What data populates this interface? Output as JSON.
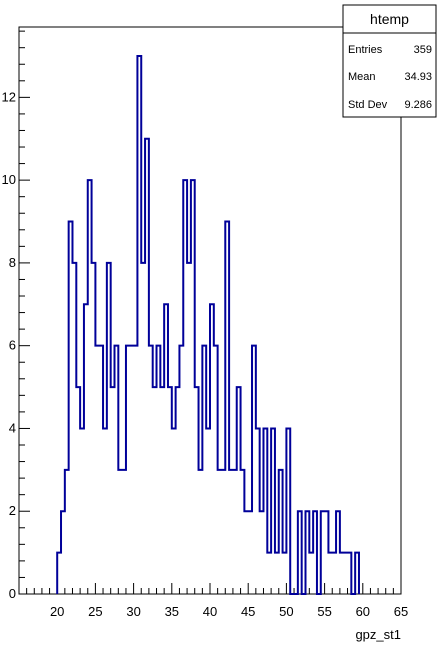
{
  "chart_data": {
    "type": "histogram",
    "title": "",
    "xlabel": "gpz_st1",
    "ylabel": "",
    "xlim": [
      15,
      65
    ],
    "ylim": [
      0,
      13.7
    ],
    "bin_width": 0.5,
    "bin_start": 20,
    "x_ticks": [
      20,
      25,
      30,
      35,
      40,
      45,
      50,
      55,
      60,
      65
    ],
    "y_ticks": [
      0,
      2,
      4,
      6,
      8,
      10,
      12
    ],
    "values": [
      1,
      2,
      3,
      9,
      8,
      5,
      4,
      7,
      10,
      8,
      6,
      6,
      4,
      8,
      5,
      6,
      3,
      3,
      6,
      6,
      6,
      13,
      8,
      11,
      6,
      5,
      6,
      5,
      7,
      5,
      4,
      5,
      6,
      10,
      8,
      10,
      5,
      3,
      6,
      4,
      7,
      6,
      3,
      3,
      9,
      3,
      3,
      5,
      3,
      2,
      2,
      6,
      4,
      2,
      4,
      1,
      4,
      1,
      3,
      1,
      4,
      0,
      0,
      2,
      0,
      2,
      1,
      2,
      0,
      2,
      2,
      1,
      1,
      2,
      1,
      1,
      1,
      0,
      1
    ],
    "line_color": "#000099",
    "stats_box": {
      "title": "htemp",
      "rows": [
        {
          "label": "Entries",
          "value": "359"
        },
        {
          "label": "Mean",
          "value": "34.93"
        },
        {
          "label": "Std Dev",
          "value": "9.286"
        }
      ]
    }
  }
}
